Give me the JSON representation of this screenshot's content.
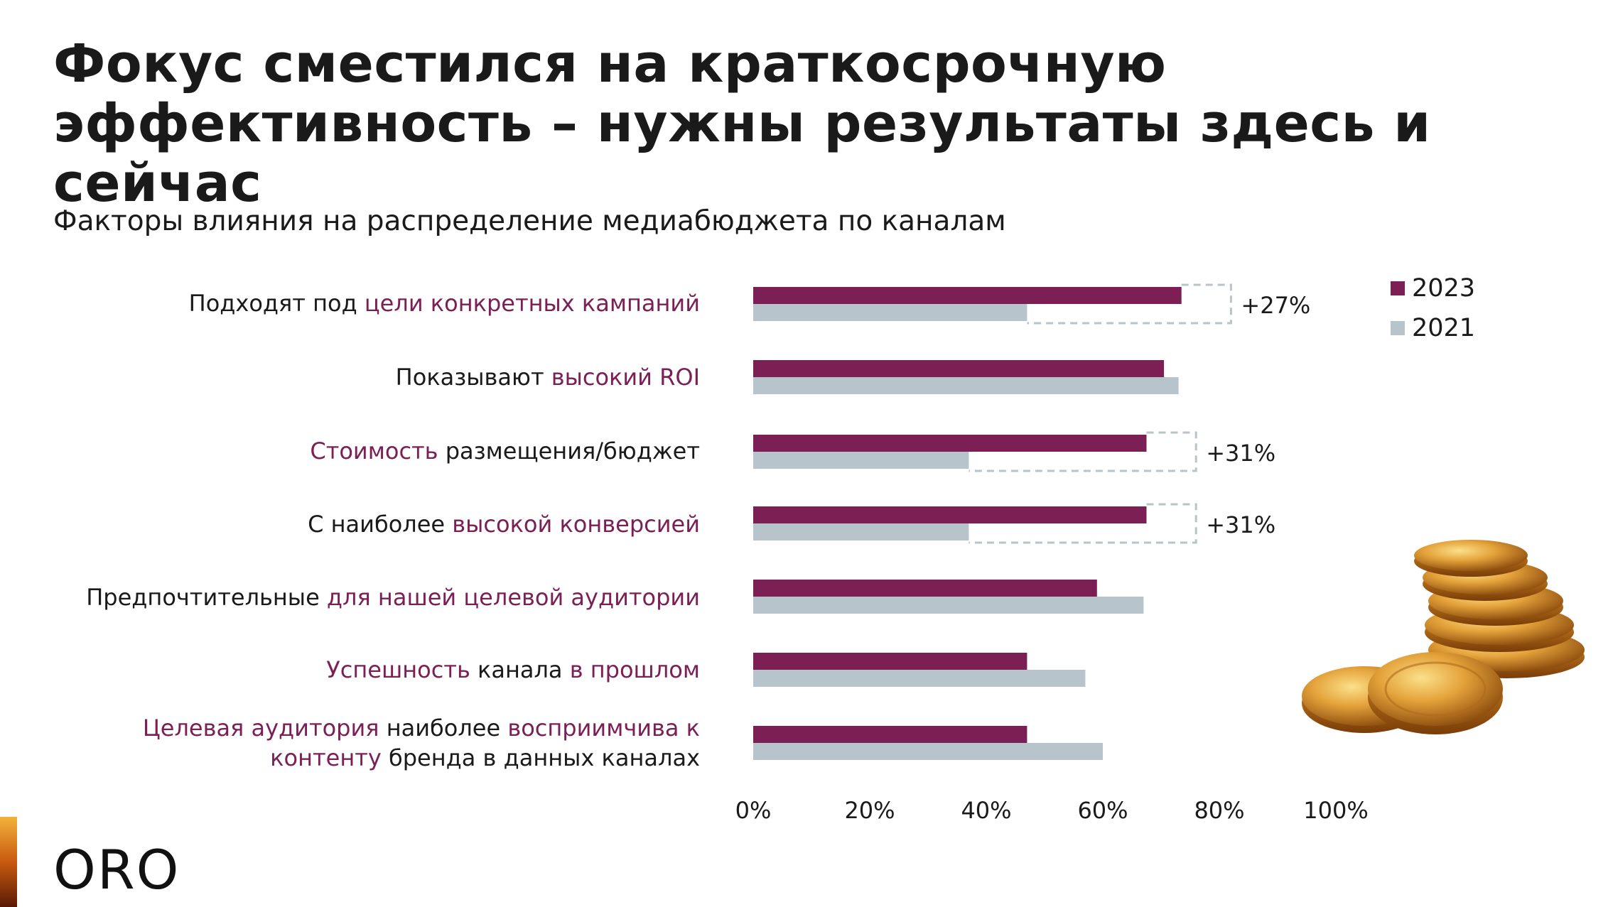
{
  "title": "Фокус сместился на краткосрочную эффективность – нужны результаты здесь и сейчас",
  "subtitle": "Факторы влияния на распределение медиабюджета по каналам",
  "colors": {
    "series_2023": "#7b1f55",
    "series_2021": "#b7c4cb",
    "highlight_text": "#7b1f55",
    "dashed_box": "#b9c4ca"
  },
  "legend": [
    {
      "name": "2023"
    },
    {
      "name": "2021"
    }
  ],
  "category_labels": [
    [
      {
        "text": "Подходят под ",
        "hl": false
      },
      {
        "text": "цели конкретных кампаний",
        "hl": true
      }
    ],
    [
      {
        "text": "Показывают ",
        "hl": false
      },
      {
        "text": "высокий ROI",
        "hl": true
      }
    ],
    [
      {
        "text": "Стоимость",
        "hl": true
      },
      {
        "text": " размещения/бюджет",
        "hl": false
      }
    ],
    [
      {
        "text": "С наиболее ",
        "hl": false
      },
      {
        "text": "высокой конверсией",
        "hl": true
      }
    ],
    [
      {
        "text": "Предпочтительные ",
        "hl": false
      },
      {
        "text": "для нашей целевой аудитории",
        "hl": true
      }
    ],
    [
      {
        "text": "Успешность",
        "hl": true
      },
      {
        "text": " канала ",
        "hl": false
      },
      {
        "text": "в прошлом",
        "hl": true
      }
    ],
    [
      {
        "text": "Целевая аудитория",
        "hl": true
      },
      {
        "text": " наиболее ",
        "hl": false
      },
      {
        "text": "восприимчива к контенту",
        "hl": true
      },
      {
        "text": " бренда в данных каналах",
        "hl": false
      }
    ]
  ],
  "chart_data": {
    "type": "bar",
    "orientation": "horizontal",
    "categories": [
      "Подходят под цели конкретных кампаний",
      "Показывают высокий ROI",
      "Стоимость размещения/бюджет",
      "С наиболее высокой конверсией",
      "Предпочтительные для нашей целевой аудитории",
      "Успешность канала в прошлом",
      "Целевая аудитория наиболее восприимчива к контенту бренда в данных каналах"
    ],
    "series": [
      {
        "name": "2023",
        "values": [
          73.5,
          70.5,
          67.5,
          67.5,
          59,
          47,
          47
        ]
      },
      {
        "name": "2021",
        "values": [
          47,
          73,
          37,
          37,
          67,
          57,
          60
        ]
      }
    ],
    "xlim": [
      0,
      100
    ],
    "ticks": [
      "0%",
      "20%",
      "40%",
      "60%",
      "80%",
      "100%"
    ],
    "tick_values": [
      0,
      20,
      40,
      60,
      80,
      100
    ],
    "annotations": [
      {
        "category_index": 0,
        "label": "+27%",
        "box_to": 82
      },
      {
        "category_index": 2,
        "label": "+31%",
        "box_to": 76
      },
      {
        "category_index": 3,
        "label": "+31%",
        "box_to": 76
      }
    ],
    "grid": false,
    "legend_position": "top-right"
  },
  "brand": {
    "logo_text": "ORO"
  }
}
